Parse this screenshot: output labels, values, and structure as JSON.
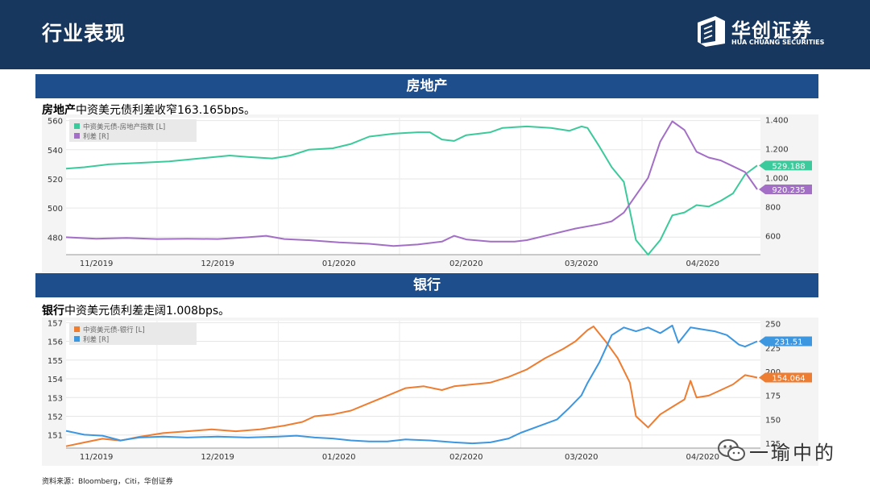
{
  "header": {
    "title": "行业表现"
  },
  "brand": {
    "name_cn": "华创证券",
    "name_en": "HUA CHUANG SECURITIES"
  },
  "sections": [
    {
      "bar_title": "房地产",
      "note_bold": "房地产",
      "note_text": "中资美元债利差收窄163.165bps。"
    },
    {
      "bar_title": "银行",
      "note_bold": "银行",
      "note_text": "中资美元债利差走阔1.008bps。"
    }
  ],
  "source": "资料来源：Bloomberg，Citi，华创证券",
  "watermark": "一瑜中的",
  "colors": {
    "header": "#17375e",
    "section_bar": "#1f4e8c",
    "green": "#3cc99b",
    "purple": "#a36fc6",
    "orange": "#ee7d31",
    "blue": "#3d97e0"
  },
  "chart_data": [
    {
      "type": "line",
      "x_ticks": [
        "11/2019",
        "12/2019",
        "01/2020",
        "02/2020",
        "03/2020",
        "04/2020"
      ],
      "y_left": {
        "ticks": [
          480,
          500,
          520,
          540,
          560
        ],
        "range": [
          468,
          562
        ]
      },
      "y_right": {
        "ticks": [
          "600",
          "800",
          "1.000",
          "1.200",
          "1.400"
        ],
        "range": [
          470,
          1415
        ]
      },
      "legend": {
        "placement": "top-left"
      },
      "last_labels": {
        "left": "529.188",
        "right": "920.235"
      },
      "series": [
        {
          "name": "中资美元债-房地产指数 [L]",
          "axis": "left",
          "color": "#3cc99b",
          "values": [
            [
              0,
              527
            ],
            [
              0.03,
              528
            ],
            [
              0.07,
              530
            ],
            [
              0.12,
              531
            ],
            [
              0.17,
              532
            ],
            [
              0.22,
              534
            ],
            [
              0.27,
              536
            ],
            [
              0.3,
              535
            ],
            [
              0.34,
              534
            ],
            [
              0.37,
              536
            ],
            [
              0.4,
              540
            ],
            [
              0.44,
              541
            ],
            [
              0.47,
              544
            ],
            [
              0.5,
              549
            ],
            [
              0.54,
              551
            ],
            [
              0.58,
              552
            ],
            [
              0.6,
              552
            ],
            [
              0.62,
              547
            ],
            [
              0.64,
              546
            ],
            [
              0.66,
              550
            ],
            [
              0.7,
              552
            ],
            [
              0.72,
              555
            ],
            [
              0.76,
              556
            ],
            [
              0.8,
              555
            ],
            [
              0.83,
              553
            ],
            [
              0.85,
              556
            ],
            [
              0.86,
              555
            ],
            [
              0.88,
              542
            ],
            [
              0.9,
              528
            ],
            [
              0.92,
              518
            ],
            [
              0.94,
              478
            ],
            [
              0.96,
              468
            ],
            [
              0.98,
              478
            ],
            [
              1.0,
              495
            ],
            [
              1.02,
              497
            ],
            [
              1.04,
              502
            ],
            [
              1.06,
              501
            ],
            [
              1.08,
              505
            ],
            [
              1.1,
              510
            ],
            [
              1.12,
              523
            ],
            [
              1.14,
              529.188
            ]
          ]
        },
        {
          "name": "利差 [R]",
          "axis": "right",
          "color": "#a36fc6",
          "values": [
            [
              0,
              590
            ],
            [
              0.05,
              580
            ],
            [
              0.1,
              585
            ],
            [
              0.15,
              578
            ],
            [
              0.2,
              580
            ],
            [
              0.25,
              578
            ],
            [
              0.3,
              590
            ],
            [
              0.33,
              600
            ],
            [
              0.36,
              578
            ],
            [
              0.4,
              570
            ],
            [
              0.45,
              555
            ],
            [
              0.5,
              545
            ],
            [
              0.54,
              530
            ],
            [
              0.58,
              540
            ],
            [
              0.62,
              560
            ],
            [
              0.64,
              600
            ],
            [
              0.66,
              575
            ],
            [
              0.7,
              560
            ],
            [
              0.74,
              560
            ],
            [
              0.76,
              570
            ],
            [
              0.8,
              610
            ],
            [
              0.84,
              650
            ],
            [
              0.88,
              680
            ],
            [
              0.9,
              700
            ],
            [
              0.92,
              760
            ],
            [
              0.94,
              880
            ],
            [
              0.96,
              1000
            ],
            [
              0.98,
              1250
            ],
            [
              1.0,
              1390
            ],
            [
              1.02,
              1330
            ],
            [
              1.04,
              1180
            ],
            [
              1.06,
              1140
            ],
            [
              1.08,
              1120
            ],
            [
              1.1,
              1080
            ],
            [
              1.12,
              1040
            ],
            [
              1.14,
              920.235
            ]
          ]
        }
      ]
    },
    {
      "type": "line",
      "x_ticks": [
        "11/2019",
        "12/2019",
        "01/2020",
        "02/2020",
        "03/2020",
        "04/2020"
      ],
      "y_left": {
        "ticks": [
          151,
          152,
          153,
          154,
          155,
          156,
          157
        ],
        "range": [
          150.3,
          157.1
        ]
      },
      "y_right": {
        "ticks": [
          125,
          150,
          175,
          200,
          225,
          250
        ],
        "range": [
          120,
          253
        ]
      },
      "legend": {
        "placement": "top-left"
      },
      "last_labels": {
        "left": "154.064",
        "right": "231.51"
      },
      "series": [
        {
          "name": "中资美元债-银行 [L]",
          "axis": "left",
          "color": "#ee7d31",
          "values": [
            [
              0,
              150.4
            ],
            [
              0.03,
              150.6
            ],
            [
              0.06,
              150.8
            ],
            [
              0.09,
              150.7
            ],
            [
              0.12,
              150.9
            ],
            [
              0.16,
              151.1
            ],
            [
              0.2,
              151.2
            ],
            [
              0.24,
              151.3
            ],
            [
              0.28,
              151.2
            ],
            [
              0.32,
              151.3
            ],
            [
              0.36,
              151.5
            ],
            [
              0.39,
              151.7
            ],
            [
              0.41,
              152.0
            ],
            [
              0.44,
              152.1
            ],
            [
              0.47,
              152.3
            ],
            [
              0.5,
              152.7
            ],
            [
              0.53,
              153.1
            ],
            [
              0.56,
              153.5
            ],
            [
              0.59,
              153.6
            ],
            [
              0.62,
              153.4
            ],
            [
              0.64,
              153.6
            ],
            [
              0.67,
              153.7
            ],
            [
              0.7,
              153.8
            ],
            [
              0.73,
              154.1
            ],
            [
              0.76,
              154.5
            ],
            [
              0.79,
              155.1
            ],
            [
              0.82,
              155.6
            ],
            [
              0.84,
              156.0
            ],
            [
              0.86,
              156.6
            ],
            [
              0.87,
              156.8
            ],
            [
              0.89,
              156.0
            ],
            [
              0.91,
              155.1
            ],
            [
              0.93,
              153.8
            ],
            [
              0.94,
              152.0
            ],
            [
              0.96,
              151.4
            ],
            [
              0.98,
              152.1
            ],
            [
              1.0,
              152.5
            ],
            [
              1.02,
              152.9
            ],
            [
              1.03,
              153.9
            ],
            [
              1.04,
              153.0
            ],
            [
              1.06,
              153.1
            ],
            [
              1.08,
              153.4
            ],
            [
              1.1,
              153.7
            ],
            [
              1.12,
              154.2
            ],
            [
              1.14,
              154.064
            ]
          ]
        },
        {
          "name": "利差 [R]",
          "axis": "right",
          "color": "#3d97e0",
          "values": [
            [
              0,
              138
            ],
            [
              0.03,
              134
            ],
            [
              0.06,
              133
            ],
            [
              0.09,
              128
            ],
            [
              0.12,
              131
            ],
            [
              0.16,
              132
            ],
            [
              0.2,
              131
            ],
            [
              0.25,
              132
            ],
            [
              0.3,
              131
            ],
            [
              0.35,
              132
            ],
            [
              0.38,
              133
            ],
            [
              0.41,
              131
            ],
            [
              0.44,
              130
            ],
            [
              0.47,
              128
            ],
            [
              0.5,
              127
            ],
            [
              0.53,
              127
            ],
            [
              0.56,
              129
            ],
            [
              0.6,
              128
            ],
            [
              0.64,
              126
            ],
            [
              0.67,
              125
            ],
            [
              0.7,
              126
            ],
            [
              0.73,
              130
            ],
            [
              0.75,
              136
            ],
            [
              0.78,
              143
            ],
            [
              0.81,
              150
            ],
            [
              0.83,
              162
            ],
            [
              0.85,
              175
            ],
            [
              0.86,
              188
            ],
            [
              0.88,
              210
            ],
            [
              0.9,
              238
            ],
            [
              0.92,
              246
            ],
            [
              0.94,
              242
            ],
            [
              0.96,
              246
            ],
            [
              0.98,
              240
            ],
            [
              1.0,
              248
            ],
            [
              1.01,
              230
            ],
            [
              1.03,
              246
            ],
            [
              1.05,
              244
            ],
            [
              1.07,
              242
            ],
            [
              1.09,
              238
            ],
            [
              1.11,
              228
            ],
            [
              1.12,
              226
            ],
            [
              1.14,
              231.51
            ]
          ]
        }
      ]
    }
  ]
}
